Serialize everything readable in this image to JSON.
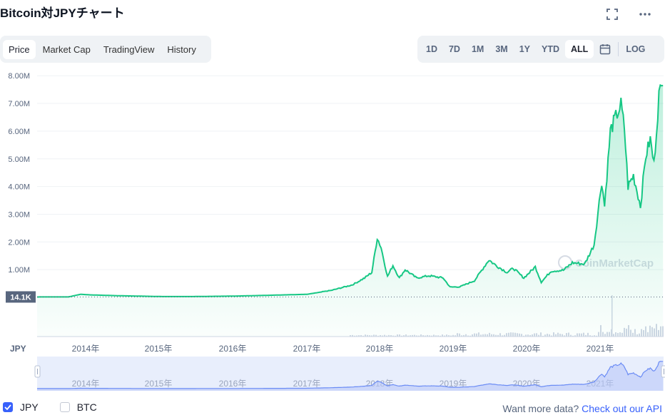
{
  "header": {
    "title": "Bitcoin対JPYチャート"
  },
  "icons": {
    "fullscreen": "fullscreen-icon",
    "more": "more-icon",
    "calendar": "calendar-icon"
  },
  "tabs": [
    {
      "label": "Price",
      "active": true
    },
    {
      "label": "Market Cap",
      "active": false
    },
    {
      "label": "TradingView",
      "active": false
    },
    {
      "label": "History",
      "active": false
    }
  ],
  "ranges": [
    {
      "label": "1D",
      "active": false
    },
    {
      "label": "7D",
      "active": false
    },
    {
      "label": "1M",
      "active": false
    },
    {
      "label": "3M",
      "active": false
    },
    {
      "label": "1Y",
      "active": false
    },
    {
      "label": "YTD",
      "active": false
    },
    {
      "label": "ALL",
      "active": true
    }
  ],
  "log_label": "LOG",
  "watermark": "CoinMarketCap",
  "legend": {
    "primary": "JPY",
    "secondary": "BTC"
  },
  "api": {
    "text": "Want more data?",
    "link": "Check out our API"
  },
  "colors": {
    "line": "#16c784",
    "accent": "#3861fb",
    "navigator": "#6b8cf5"
  },
  "chart_data": {
    "type": "area",
    "ylabel": "JPY",
    "ylim": [
      0,
      8000000
    ],
    "y_ticks": [
      "8.00M",
      "7.00M",
      "6.00M",
      "5.00M",
      "4.00M",
      "3.00M",
      "2.00M",
      "1.00M"
    ],
    "x_ticks": [
      "2014年",
      "2015年",
      "2016年",
      "2017年",
      "2018年",
      "2019年",
      "2020年",
      "2021年"
    ],
    "current_label": "14.1K",
    "series": [
      {
        "values": [
          [
            "2013-04-28",
            14100
          ],
          [
            "2013-10-01",
            15000
          ],
          [
            "2013-11-30",
            110000
          ],
          [
            "2014-01-15",
            90000
          ],
          [
            "2014-06-01",
            60000
          ],
          [
            "2015-01-15",
            28000
          ],
          [
            "2015-06-01",
            28000
          ],
          [
            "2016-01-01",
            45000
          ],
          [
            "2016-06-01",
            70000
          ],
          [
            "2017-01-01",
            110000
          ],
          [
            "2017-05-01",
            250000
          ],
          [
            "2017-08-15",
            450000
          ],
          [
            "2017-10-15",
            700000
          ],
          [
            "2017-11-20",
            900000
          ],
          [
            "2017-12-17",
            2150000
          ],
          [
            "2018-01-05",
            1800000
          ],
          [
            "2018-02-06",
            750000
          ],
          [
            "2018-03-05",
            1150000
          ],
          [
            "2018-04-06",
            700000
          ],
          [
            "2018-05-05",
            1000000
          ],
          [
            "2018-07-01",
            700000
          ],
          [
            "2018-09-01",
            780000
          ],
          [
            "2018-11-10",
            700000
          ],
          [
            "2018-12-15",
            370000
          ],
          [
            "2019-02-01",
            380000
          ],
          [
            "2019-04-15",
            600000
          ],
          [
            "2019-06-26",
            1350000
          ],
          [
            "2019-08-01",
            1150000
          ],
          [
            "2019-09-25",
            900000
          ],
          [
            "2019-10-26",
            1050000
          ],
          [
            "2019-12-17",
            700000
          ],
          [
            "2020-02-12",
            1100000
          ],
          [
            "2020-03-13",
            550000
          ],
          [
            "2020-05-01",
            950000
          ],
          [
            "2020-07-01",
            980000
          ],
          [
            "2020-08-15",
            1250000
          ],
          [
            "2020-10-15",
            1200000
          ],
          [
            "2020-12-01",
            1900000
          ],
          [
            "2021-01-08",
            4200000
          ],
          [
            "2021-01-22",
            3300000
          ],
          [
            "2021-02-20",
            6000000
          ],
          [
            "2021-03-13",
            6400000
          ],
          [
            "2021-04-14",
            6950000
          ],
          [
            "2021-05-01",
            6100000
          ],
          [
            "2021-05-19",
            4000000
          ],
          [
            "2021-06-15",
            4400000
          ],
          [
            "2021-07-20",
            3300000
          ],
          [
            "2021-08-15",
            5100000
          ],
          [
            "2021-09-07",
            5700000
          ],
          [
            "2021-09-25",
            4800000
          ],
          [
            "2021-10-20",
            7300000
          ],
          [
            "2021-11-09",
            7650000
          ]
        ]
      }
    ],
    "volume": {
      "shown": true
    },
    "grid": true
  }
}
